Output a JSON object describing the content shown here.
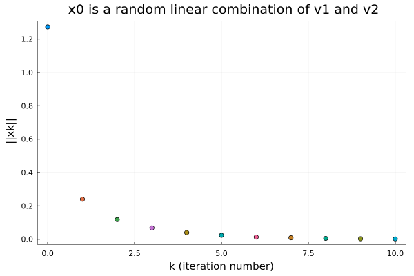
{
  "chart_data": {
    "type": "scatter",
    "title": "x0 is a random linear combination of v1 and v2",
    "xlabel": "k (iteration number)",
    "ylabel": "||xk||",
    "xlim": [
      -0.3,
      10.3
    ],
    "ylim": [
      -0.03,
      1.31
    ],
    "xticks": [
      0,
      2.5,
      5,
      7.5,
      10
    ],
    "xtick_labels": [
      "0.0",
      "2.5",
      "5.0",
      "7.5",
      "10.0"
    ],
    "yticks": [
      0,
      0.2,
      0.4,
      0.6,
      0.8,
      1.0,
      1.2
    ],
    "ytick_labels": [
      "0.0",
      "0.2",
      "0.4",
      "0.6",
      "0.8",
      "1.0",
      "1.2"
    ],
    "grid": true,
    "legend": "none",
    "x": [
      0,
      1,
      2,
      3,
      4,
      5,
      6,
      7,
      8,
      9,
      10
    ],
    "y": [
      1.273,
      0.24,
      0.118,
      0.068,
      0.04,
      0.024,
      0.013,
      0.009,
      0.005,
      0.003,
      0.002
    ],
    "point_colors": [
      "#009AFA",
      "#E26F46",
      "#3EA44E",
      "#C271D2",
      "#AC8E18",
      "#00A9AD",
      "#ED5E93",
      "#C68125",
      "#00A98D",
      "#8E971E",
      "#00A9CD"
    ]
  }
}
